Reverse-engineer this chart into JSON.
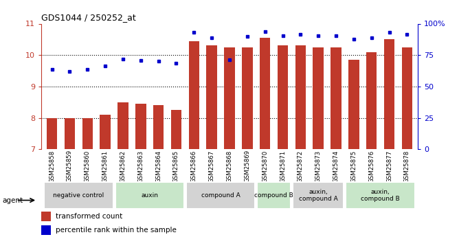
{
  "title": "GDS1044 / 250252_at",
  "samples": [
    "GSM25858",
    "GSM25859",
    "GSM25860",
    "GSM25861",
    "GSM25862",
    "GSM25863",
    "GSM25864",
    "GSM25865",
    "GSM25866",
    "GSM25867",
    "GSM25868",
    "GSM25869",
    "GSM25870",
    "GSM25871",
    "GSM25872",
    "GSM25873",
    "GSM25874",
    "GSM25875",
    "GSM25876",
    "GSM25877",
    "GSM25878"
  ],
  "bar_values": [
    8.0,
    8.0,
    8.0,
    8.1,
    8.5,
    8.45,
    8.4,
    8.25,
    10.45,
    10.3,
    10.25,
    10.25,
    10.55,
    10.3,
    10.3,
    10.25,
    10.25,
    9.85,
    10.1,
    10.5,
    10.25
  ],
  "dot_values": [
    9.55,
    9.48,
    9.55,
    9.65,
    9.88,
    9.83,
    9.8,
    9.75,
    10.72,
    10.55,
    9.85,
    10.6,
    10.75,
    10.62,
    10.65,
    10.62,
    10.62,
    10.5,
    10.55,
    10.72,
    10.65
  ],
  "bar_color": "#c0392b",
  "dot_color": "#0000cc",
  "ylim_left": [
    7,
    11
  ],
  "ylim_right": [
    0,
    100
  ],
  "yticks_left": [
    7,
    8,
    9,
    10,
    11
  ],
  "yticks_right": [
    0,
    25,
    50,
    75,
    100
  ],
  "ytick_labels_right": [
    "0",
    "25",
    "50",
    "75",
    "100%"
  ],
  "groups": [
    {
      "label": "negative control",
      "start": 0,
      "end": 3,
      "color": "#d3d3d3"
    },
    {
      "label": "auxin",
      "start": 4,
      "end": 7,
      "color": "#c8e6c9"
    },
    {
      "label": "compound A",
      "start": 8,
      "end": 11,
      "color": "#d3d3d3"
    },
    {
      "label": "compound B",
      "start": 12,
      "end": 13,
      "color": "#c8e6c9"
    },
    {
      "label": "auxin,\ncompound A",
      "start": 14,
      "end": 16,
      "color": "#d3d3d3"
    },
    {
      "label": "auxin,\ncompound B",
      "start": 17,
      "end": 20,
      "color": "#c8e6c9"
    }
  ],
  "legend_red": "transformed count",
  "legend_blue": "percentile rank within the sample",
  "agent_label": "agent",
  "gridlines": [
    8,
    9,
    10
  ]
}
